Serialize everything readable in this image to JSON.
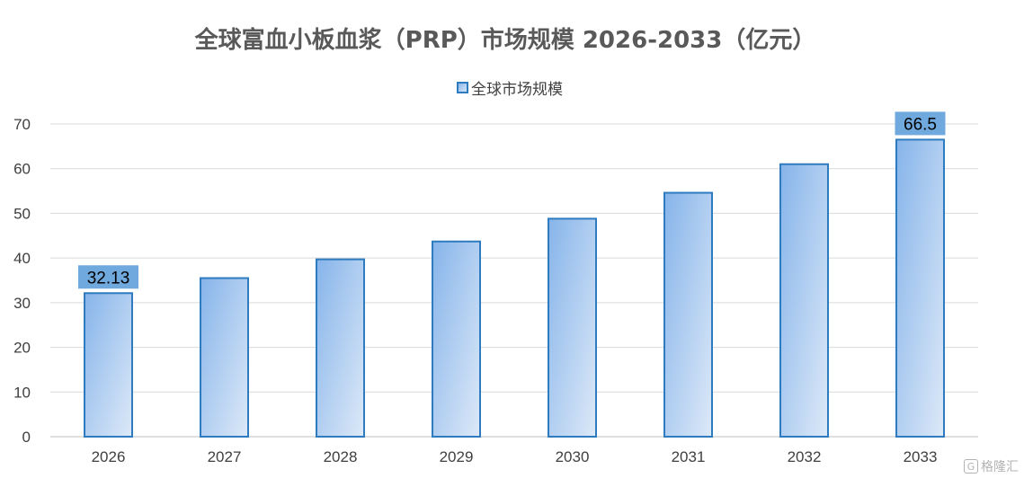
{
  "chart_data": {
    "type": "bar",
    "title": "全球富血小板血浆（PRP）市场规模 2026-2033（亿元）",
    "categories": [
      "2026",
      "2027",
      "2028",
      "2029",
      "2030",
      "2031",
      "2032",
      "2033"
    ],
    "series": [
      {
        "name": "全球市场规模",
        "values": [
          32.13,
          35.5,
          39.7,
          43.7,
          48.8,
          54.6,
          61.0,
          66.5
        ]
      }
    ],
    "data_labels": [
      {
        "index": 0,
        "text": "32.13"
      },
      {
        "index": 7,
        "text": "66.5"
      }
    ],
    "ylim": [
      0,
      70
    ],
    "yticks": [
      0,
      10,
      20,
      30,
      40,
      50,
      60,
      70
    ],
    "grid": true,
    "legend": "top-center",
    "colors": {
      "bar_gradient_start": "#86b4ea",
      "bar_gradient_end": "#dde9f8",
      "bar_border": "#2e7bbf",
      "label_box": "#6fa9dd",
      "gridline": "#d9d9d9"
    }
  },
  "watermark": {
    "icon": "gezhi-logo-icon",
    "text": "格隆汇"
  }
}
